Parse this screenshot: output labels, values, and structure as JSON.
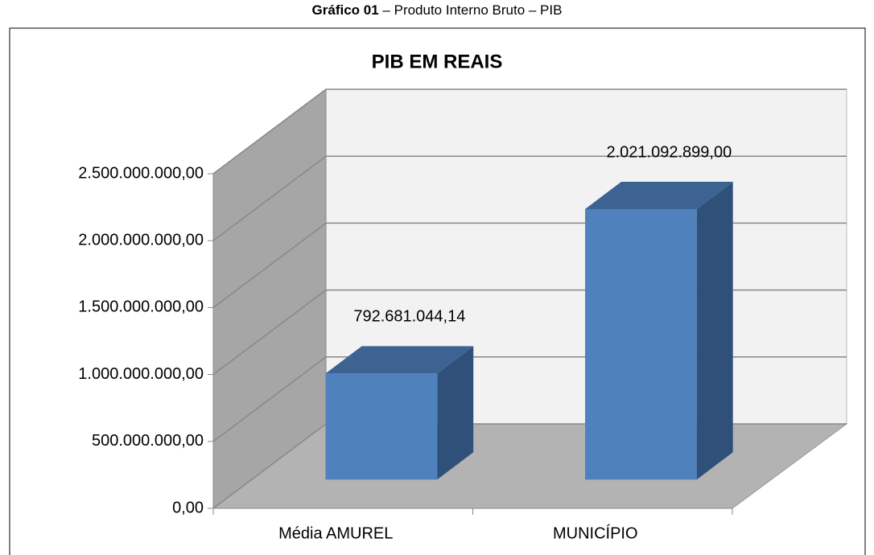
{
  "caption_label": "Gráfico 01",
  "caption_text": "– Produto Interno Bruto – PIB",
  "chart_data": {
    "type": "bar3d",
    "title": "PIB EM REAIS",
    "categories": [
      "Média AMUREL",
      "MUNICÍPIO"
    ],
    "values": [
      792681044.14,
      2021092899
    ],
    "value_labels": [
      "792.681.044,14",
      "2.021.092.899,00"
    ],
    "color": "#4f81bd",
    "ylim": [
      0,
      2500000000
    ],
    "yticks": [
      {
        "value": 0,
        "label": "0,00"
      },
      {
        "value": 500000000,
        "label": "500.000.000,00"
      },
      {
        "value": 1000000000,
        "label": "1.000.000.000,00"
      },
      {
        "value": 1500000000,
        "label": "1.500.000.000,00"
      },
      {
        "value": 2000000000,
        "label": "2.000.000.000,00"
      },
      {
        "value": 2500000000,
        "label": "2.500.000.000,00"
      }
    ],
    "grid": true
  }
}
